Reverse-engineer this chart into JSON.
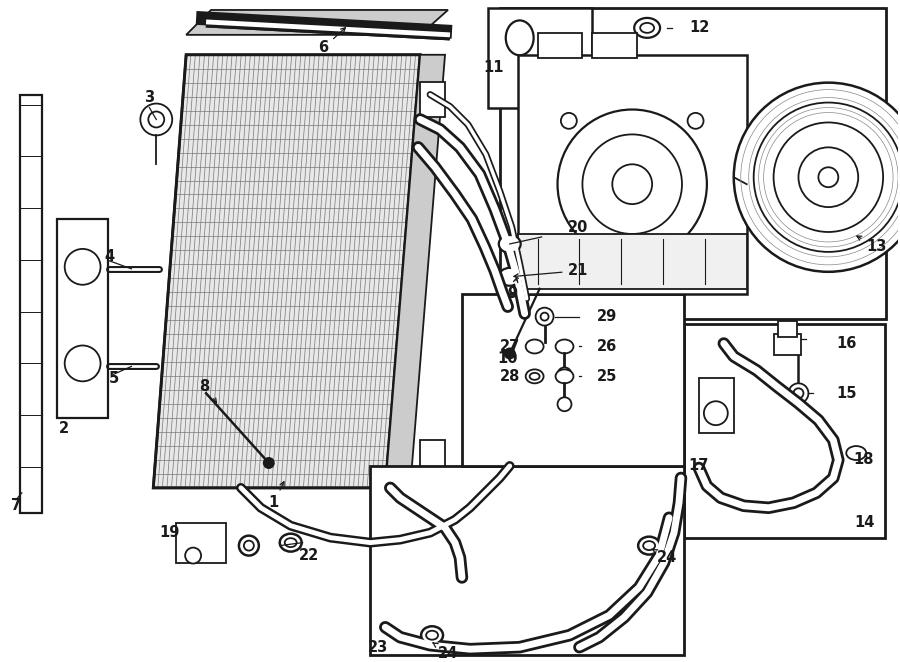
{
  "bg_color": "#ffffff",
  "line_color": "#1a1a1a",
  "fig_width": 9.0,
  "fig_height": 6.62,
  "lw": 1.3,
  "label_fontsize": 10.5
}
